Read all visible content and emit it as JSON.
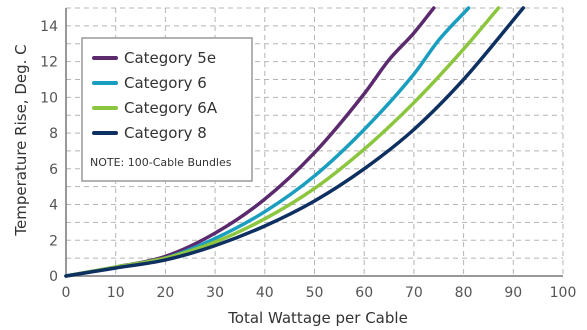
{
  "chart_data": {
    "type": "line",
    "title": "",
    "xlabel": "Total Wattage per Cable",
    "ylabel": "Temperature Rise, Deg. C",
    "xlim": [
      0,
      100
    ],
    "ylim": [
      0,
      15
    ],
    "xticks": [
      0,
      10,
      20,
      30,
      40,
      50,
      60,
      70,
      80,
      90,
      100
    ],
    "yticks": [
      0,
      2,
      4,
      6,
      8,
      10,
      12,
      14
    ],
    "grid": true,
    "legend_position": "top-left",
    "legend_note": "NOTE: 100-Cable Bundles",
    "series": [
      {
        "name": "Category 5e",
        "color": "#5b2a6e",
        "x": [
          0,
          10,
          20,
          30,
          40,
          50,
          60,
          65,
          70,
          74
        ],
        "y": [
          0,
          0.5,
          1.1,
          2.4,
          4.3,
          6.9,
          10.2,
          12.1,
          13.6,
          15
        ]
      },
      {
        "name": "Category 6",
        "color": "#1a9ec0",
        "x": [
          0,
          10,
          20,
          30,
          40,
          50,
          60,
          70,
          75,
          81
        ],
        "y": [
          0,
          0.5,
          1.0,
          2.1,
          3.6,
          5.6,
          8.2,
          11.3,
          13.2,
          15
        ]
      },
      {
        "name": "Category 6A",
        "color": "#8cc63f",
        "x": [
          0,
          10,
          20,
          30,
          40,
          50,
          60,
          70,
          80,
          87
        ],
        "y": [
          0,
          0.5,
          1.0,
          1.9,
          3.2,
          4.9,
          7.1,
          9.7,
          12.7,
          15
        ]
      },
      {
        "name": "Category 8",
        "color": "#0e3060",
        "x": [
          0,
          10,
          20,
          30,
          40,
          50,
          60,
          70,
          80,
          92
        ],
        "y": [
          0,
          0.45,
          0.9,
          1.7,
          2.8,
          4.2,
          6.0,
          8.2,
          11.0,
          15
        ]
      }
    ]
  }
}
